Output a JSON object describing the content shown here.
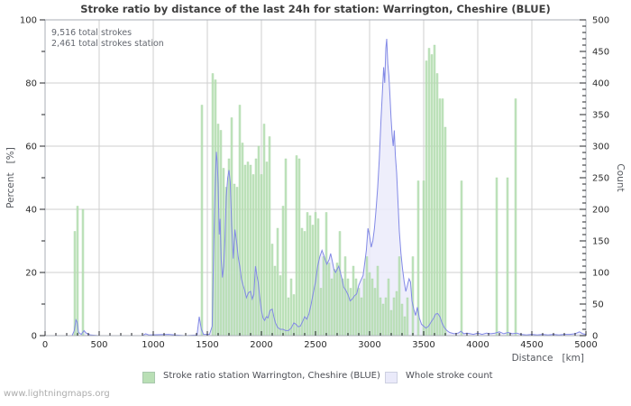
{
  "title": "Stroke ratio by distance of the last 24h for station: Warrington, Cheshire (BLUE)",
  "annotations": {
    "line1": "9,516 total strokes",
    "line2": "2,461 total strokes station"
  },
  "footer": "www.lightningmaps.org",
  "colors": {
    "bar_fill": "#b9dfb5",
    "bar_edge": "#a3d49e",
    "count_line": "#8289e6",
    "count_fill": "#eaeafa",
    "grid": "#cfcfcf",
    "plot_border": "#a9aeb6"
  },
  "chart_data": {
    "type": "bar",
    "title": "Stroke ratio by distance of the last 24h for station: Warrington, Cheshire (BLUE)",
    "grid": true,
    "legend_position": "bottom",
    "x_axis": {
      "label": "Distance   [km]",
      "min": 0,
      "max": 5000,
      "minor_step": 100,
      "major_ticks": [
        0,
        500,
        1000,
        1500,
        2000,
        2500,
        3000,
        3500,
        4000,
        4500,
        5000
      ]
    },
    "y_left": {
      "label": "Percent   [%]",
      "min": 0,
      "max": 100,
      "minor_step": 10,
      "major_ticks": [
        0,
        20,
        40,
        60,
        80,
        100
      ]
    },
    "y_right": {
      "label": "Count",
      "min": 0,
      "max": 500,
      "minor_step": 10,
      "major_ticks": [
        0,
        50,
        100,
        150,
        200,
        250,
        300,
        350,
        400,
        450,
        500
      ]
    },
    "series": [
      {
        "name": "Stroke ratio station Warrington, Cheshire (BLUE)",
        "type": "bar",
        "axis": "left",
        "unit": "%",
        "bin_km": 25,
        "points": [
          [
            275,
            33
          ],
          [
            300,
            41
          ],
          [
            350,
            40
          ],
          [
            1450,
            73
          ],
          [
            1550,
            83
          ],
          [
            1575,
            81
          ],
          [
            1600,
            67
          ],
          [
            1625,
            65
          ],
          [
            1650,
            53
          ],
          [
            1675,
            47
          ],
          [
            1700,
            56
          ],
          [
            1725,
            69
          ],
          [
            1750,
            48
          ],
          [
            1775,
            47
          ],
          [
            1800,
            73
          ],
          [
            1825,
            61
          ],
          [
            1850,
            54
          ],
          [
            1875,
            55
          ],
          [
            1900,
            54
          ],
          [
            1925,
            51
          ],
          [
            1950,
            56
          ],
          [
            1975,
            60
          ],
          [
            2000,
            51
          ],
          [
            2025,
            67
          ],
          [
            2050,
            55
          ],
          [
            2075,
            63
          ],
          [
            2100,
            29
          ],
          [
            2125,
            22
          ],
          [
            2150,
            34
          ],
          [
            2175,
            19
          ],
          [
            2200,
            41
          ],
          [
            2225,
            56
          ],
          [
            2250,
            12
          ],
          [
            2275,
            18
          ],
          [
            2300,
            13
          ],
          [
            2325,
            57
          ],
          [
            2350,
            56
          ],
          [
            2375,
            34
          ],
          [
            2400,
            33
          ],
          [
            2425,
            39
          ],
          [
            2450,
            38
          ],
          [
            2475,
            35
          ],
          [
            2500,
            39
          ],
          [
            2525,
            37
          ],
          [
            2550,
            15
          ],
          [
            2575,
            25
          ],
          [
            2600,
            39
          ],
          [
            2625,
            23
          ],
          [
            2650,
            18
          ],
          [
            2675,
            21
          ],
          [
            2700,
            23
          ],
          [
            2725,
            33
          ],
          [
            2750,
            18
          ],
          [
            2775,
            25
          ],
          [
            2800,
            18
          ],
          [
            2825,
            15
          ],
          [
            2850,
            22
          ],
          [
            2875,
            18
          ],
          [
            2900,
            15
          ],
          [
            2925,
            12
          ],
          [
            2950,
            18
          ],
          [
            2975,
            25
          ],
          [
            3000,
            20
          ],
          [
            3025,
            18
          ],
          [
            3050,
            15
          ],
          [
            3075,
            22
          ],
          [
            3100,
            12
          ],
          [
            3125,
            10
          ],
          [
            3150,
            12
          ],
          [
            3175,
            18
          ],
          [
            3200,
            8
          ],
          [
            3225,
            12
          ],
          [
            3250,
            14
          ],
          [
            3275,
            25
          ],
          [
            3300,
            10
          ],
          [
            3325,
            6
          ],
          [
            3350,
            12
          ],
          [
            3400,
            25
          ],
          [
            3450,
            49
          ],
          [
            3500,
            49
          ],
          [
            3525,
            87
          ],
          [
            3550,
            91
          ],
          [
            3575,
            89
          ],
          [
            3600,
            92
          ],
          [
            3625,
            83
          ],
          [
            3650,
            75
          ],
          [
            3675,
            75
          ],
          [
            3700,
            66
          ],
          [
            3850,
            49
          ],
          [
            4175,
            50
          ],
          [
            4275,
            50
          ],
          [
            4350,
            75
          ]
        ]
      },
      {
        "name": "Whole stroke count",
        "type": "area-line",
        "axis": "right",
        "unit": "count",
        "points": [
          [
            0,
            0
          ],
          [
            250,
            0
          ],
          [
            270,
            8
          ],
          [
            285,
            25
          ],
          [
            295,
            22
          ],
          [
            310,
            5
          ],
          [
            335,
            2
          ],
          [
            360,
            8
          ],
          [
            380,
            4
          ],
          [
            420,
            1
          ],
          [
            500,
            0
          ],
          [
            900,
            0
          ],
          [
            930,
            3
          ],
          [
            960,
            1
          ],
          [
            1140,
            2
          ],
          [
            1200,
            1
          ],
          [
            1300,
            0
          ],
          [
            1405,
            1
          ],
          [
            1425,
            30
          ],
          [
            1445,
            10
          ],
          [
            1465,
            2
          ],
          [
            1520,
            2
          ],
          [
            1545,
            15
          ],
          [
            1560,
            150
          ],
          [
            1572,
            230
          ],
          [
            1583,
            291
          ],
          [
            1592,
            275
          ],
          [
            1600,
            240
          ],
          [
            1610,
            160
          ],
          [
            1618,
            185
          ],
          [
            1628,
            120
          ],
          [
            1640,
            92
          ],
          [
            1652,
            110
          ],
          [
            1663,
            155
          ],
          [
            1675,
            220
          ],
          [
            1688,
            250
          ],
          [
            1700,
            262
          ],
          [
            1712,
            243
          ],
          [
            1725,
            175
          ],
          [
            1740,
            122
          ],
          [
            1755,
            168
          ],
          [
            1770,
            150
          ],
          [
            1785,
            125
          ],
          [
            1800,
            110
          ],
          [
            1815,
            90
          ],
          [
            1830,
            80
          ],
          [
            1845,
            72
          ],
          [
            1862,
            60
          ],
          [
            1880,
            68
          ],
          [
            1900,
            70
          ],
          [
            1915,
            58
          ],
          [
            1930,
            65
          ],
          [
            1945,
            110
          ],
          [
            1958,
            95
          ],
          [
            1970,
            85
          ],
          [
            1985,
            60
          ],
          [
            2000,
            40
          ],
          [
            2015,
            28
          ],
          [
            2030,
            24
          ],
          [
            2045,
            30
          ],
          [
            2060,
            28
          ],
          [
            2080,
            40
          ],
          [
            2100,
            42
          ],
          [
            2115,
            30
          ],
          [
            2130,
            20
          ],
          [
            2150,
            13
          ],
          [
            2175,
            10
          ],
          [
            2200,
            10
          ],
          [
            2225,
            8
          ],
          [
            2250,
            8
          ],
          [
            2275,
            12
          ],
          [
            2300,
            20
          ],
          [
            2320,
            18
          ],
          [
            2340,
            14
          ],
          [
            2360,
            15
          ],
          [
            2380,
            22
          ],
          [
            2400,
            30
          ],
          [
            2420,
            26
          ],
          [
            2440,
            35
          ],
          [
            2460,
            50
          ],
          [
            2480,
            68
          ],
          [
            2500,
            85
          ],
          [
            2520,
            110
          ],
          [
            2540,
            125
          ],
          [
            2560,
            135
          ],
          [
            2575,
            128
          ],
          [
            2590,
            120
          ],
          [
            2605,
            113
          ],
          [
            2625,
            120
          ],
          [
            2640,
            130
          ],
          [
            2655,
            118
          ],
          [
            2670,
            105
          ],
          [
            2685,
            100
          ],
          [
            2700,
            105
          ],
          [
            2715,
            110
          ],
          [
            2730,
            100
          ],
          [
            2745,
            90
          ],
          [
            2760,
            77
          ],
          [
            2780,
            72
          ],
          [
            2800,
            65
          ],
          [
            2820,
            55
          ],
          [
            2840,
            58
          ],
          [
            2860,
            63
          ],
          [
            2880,
            66
          ],
          [
            2900,
            80
          ],
          [
            2920,
            88
          ],
          [
            2940,
            95
          ],
          [
            2955,
            115
          ],
          [
            2970,
            135
          ],
          [
            2985,
            170
          ],
          [
            3000,
            158
          ],
          [
            3015,
            140
          ],
          [
            3030,
            150
          ],
          [
            3045,
            170
          ],
          [
            3060,
            200
          ],
          [
            3075,
            235
          ],
          [
            3090,
            280
          ],
          [
            3105,
            340
          ],
          [
            3118,
            385
          ],
          [
            3130,
            425
          ],
          [
            3140,
            400
          ],
          [
            3150,
            455
          ],
          [
            3158,
            470
          ],
          [
            3168,
            430
          ],
          [
            3178,
            412
          ],
          [
            3188,
            380
          ],
          [
            3198,
            345
          ],
          [
            3208,
            318
          ],
          [
            3218,
            300
          ],
          [
            3228,
            325
          ],
          [
            3238,
            285
          ],
          [
            3250,
            258
          ],
          [
            3262,
            215
          ],
          [
            3275,
            165
          ],
          [
            3290,
            130
          ],
          [
            3305,
            105
          ],
          [
            3320,
            85
          ],
          [
            3335,
            70
          ],
          [
            3350,
            80
          ],
          [
            3365,
            90
          ],
          [
            3378,
            85
          ],
          [
            3392,
            55
          ],
          [
            3408,
            42
          ],
          [
            3425,
            32
          ],
          [
            3442,
            45
          ],
          [
            3460,
            28
          ],
          [
            3480,
            18
          ],
          [
            3500,
            15
          ],
          [
            3520,
            12
          ],
          [
            3545,
            15
          ],
          [
            3570,
            22
          ],
          [
            3590,
            27
          ],
          [
            3610,
            34
          ],
          [
            3630,
            35
          ],
          [
            3650,
            30
          ],
          [
            3670,
            20
          ],
          [
            3690,
            13
          ],
          [
            3715,
            8
          ],
          [
            3740,
            5
          ],
          [
            3780,
            3
          ],
          [
            3820,
            4
          ],
          [
            3845,
            7
          ],
          [
            3870,
            3
          ],
          [
            3900,
            4
          ],
          [
            3930,
            3
          ],
          [
            3960,
            2
          ],
          [
            4000,
            4
          ],
          [
            4040,
            2
          ],
          [
            4080,
            4
          ],
          [
            4120,
            3
          ],
          [
            4160,
            4
          ],
          [
            4200,
            6
          ],
          [
            4240,
            3
          ],
          [
            4280,
            5
          ],
          [
            4320,
            3
          ],
          [
            4360,
            4
          ],
          [
            4400,
            2
          ],
          [
            4450,
            1
          ],
          [
            4500,
            2
          ],
          [
            4550,
            1
          ],
          [
            4600,
            2
          ],
          [
            4650,
            1
          ],
          [
            4700,
            2
          ],
          [
            4750,
            1
          ],
          [
            4800,
            2
          ],
          [
            4850,
            2
          ],
          [
            4900,
            3
          ],
          [
            4940,
            6
          ],
          [
            4970,
            3
          ],
          [
            5000,
            2
          ]
        ]
      }
    ]
  }
}
